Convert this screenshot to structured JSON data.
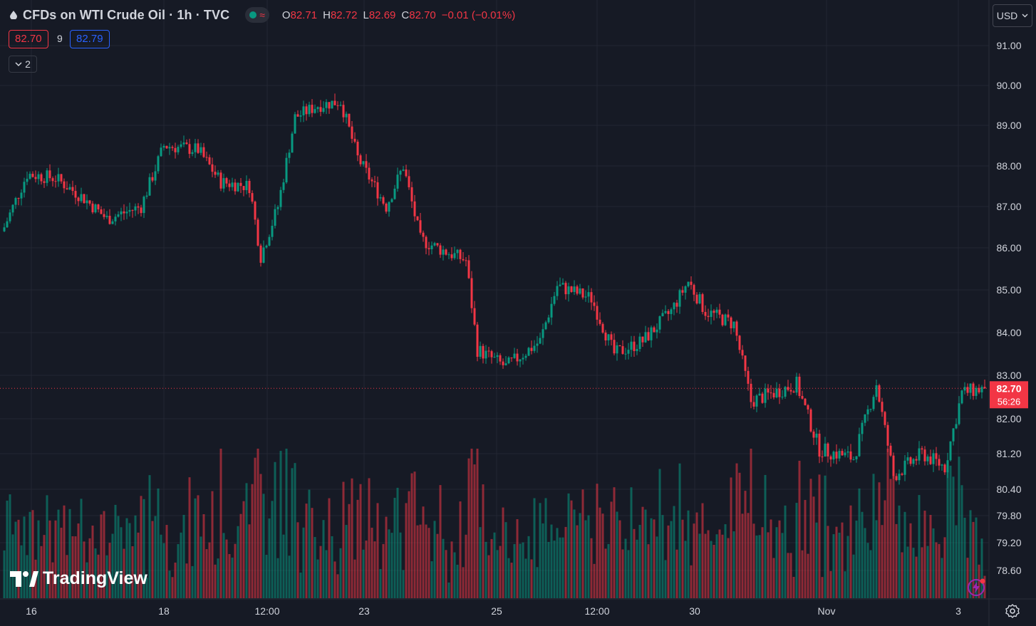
{
  "header": {
    "title": "CFDs on WTI Crude Oil · 1h · TVC",
    "ohlc": [
      {
        "key": "O",
        "value": "82.71"
      },
      {
        "key": "H",
        "value": "82.72"
      },
      {
        "key": "L",
        "value": "82.69"
      },
      {
        "key": "C",
        "value": "82.70"
      }
    ],
    "change": "−0.01 (−0.01%)"
  },
  "quote": {
    "bid": "82.70",
    "spread": "9",
    "ask": "82.79"
  },
  "indicators_toggle": {
    "count": "2"
  },
  "currency": "USD",
  "logo_text": "TradingView",
  "colors": {
    "up": "#089981",
    "down": "#f23645",
    "background": "#161a25",
    "grid": "#232632",
    "axis_text": "#d1d4dc"
  },
  "chart_data": {
    "type": "candlestick",
    "timeframe": "1h",
    "y_axis_ticks": [
      "91.00",
      "90.00",
      "89.00",
      "88.00",
      "87.00",
      "86.00",
      "85.00",
      "84.00",
      "83.00",
      "82.00",
      "81.20",
      "80.40",
      "79.80",
      "79.20",
      "78.60"
    ],
    "x_axis_ticks": [
      "16",
      "18",
      "12:00",
      "23",
      "25",
      "12:00",
      "30",
      "Nov",
      "3"
    ],
    "last_price": "82.70",
    "countdown": "56:26",
    "anchors": [
      [
        0,
        86.5
      ],
      [
        8,
        87.8
      ],
      [
        18,
        87.7
      ],
      [
        28,
        87.2
      ],
      [
        36,
        86.7
      ],
      [
        48,
        87.0
      ],
      [
        56,
        88.5
      ],
      [
        68,
        88.4
      ],
      [
        76,
        87.6
      ],
      [
        86,
        87.5
      ],
      [
        90,
        85.8
      ],
      [
        96,
        87.0
      ],
      [
        102,
        89.2
      ],
      [
        110,
        89.5
      ],
      [
        118,
        89.6
      ],
      [
        124,
        88.2
      ],
      [
        134,
        87.0
      ],
      [
        140,
        88.0
      ],
      [
        146,
        86.2
      ],
      [
        152,
        86.0
      ],
      [
        162,
        85.7
      ],
      [
        166,
        83.6
      ],
      [
        176,
        83.2
      ],
      [
        188,
        83.8
      ],
      [
        194,
        85.1
      ],
      [
        206,
        84.8
      ],
      [
        214,
        83.5
      ],
      [
        224,
        83.8
      ],
      [
        234,
        84.5
      ],
      [
        240,
        85.2
      ],
      [
        246,
        84.5
      ],
      [
        256,
        84.2
      ],
      [
        262,
        82.4
      ],
      [
        278,
        82.8
      ],
      [
        286,
        81.3
      ],
      [
        298,
        81.1
      ],
      [
        306,
        82.8
      ],
      [
        312,
        80.7
      ],
      [
        322,
        81.2
      ],
      [
        330,
        80.9
      ],
      [
        336,
        82.6
      ],
      [
        344,
        82.7
      ]
    ],
    "volume_range": [
      0,
      1
    ]
  }
}
